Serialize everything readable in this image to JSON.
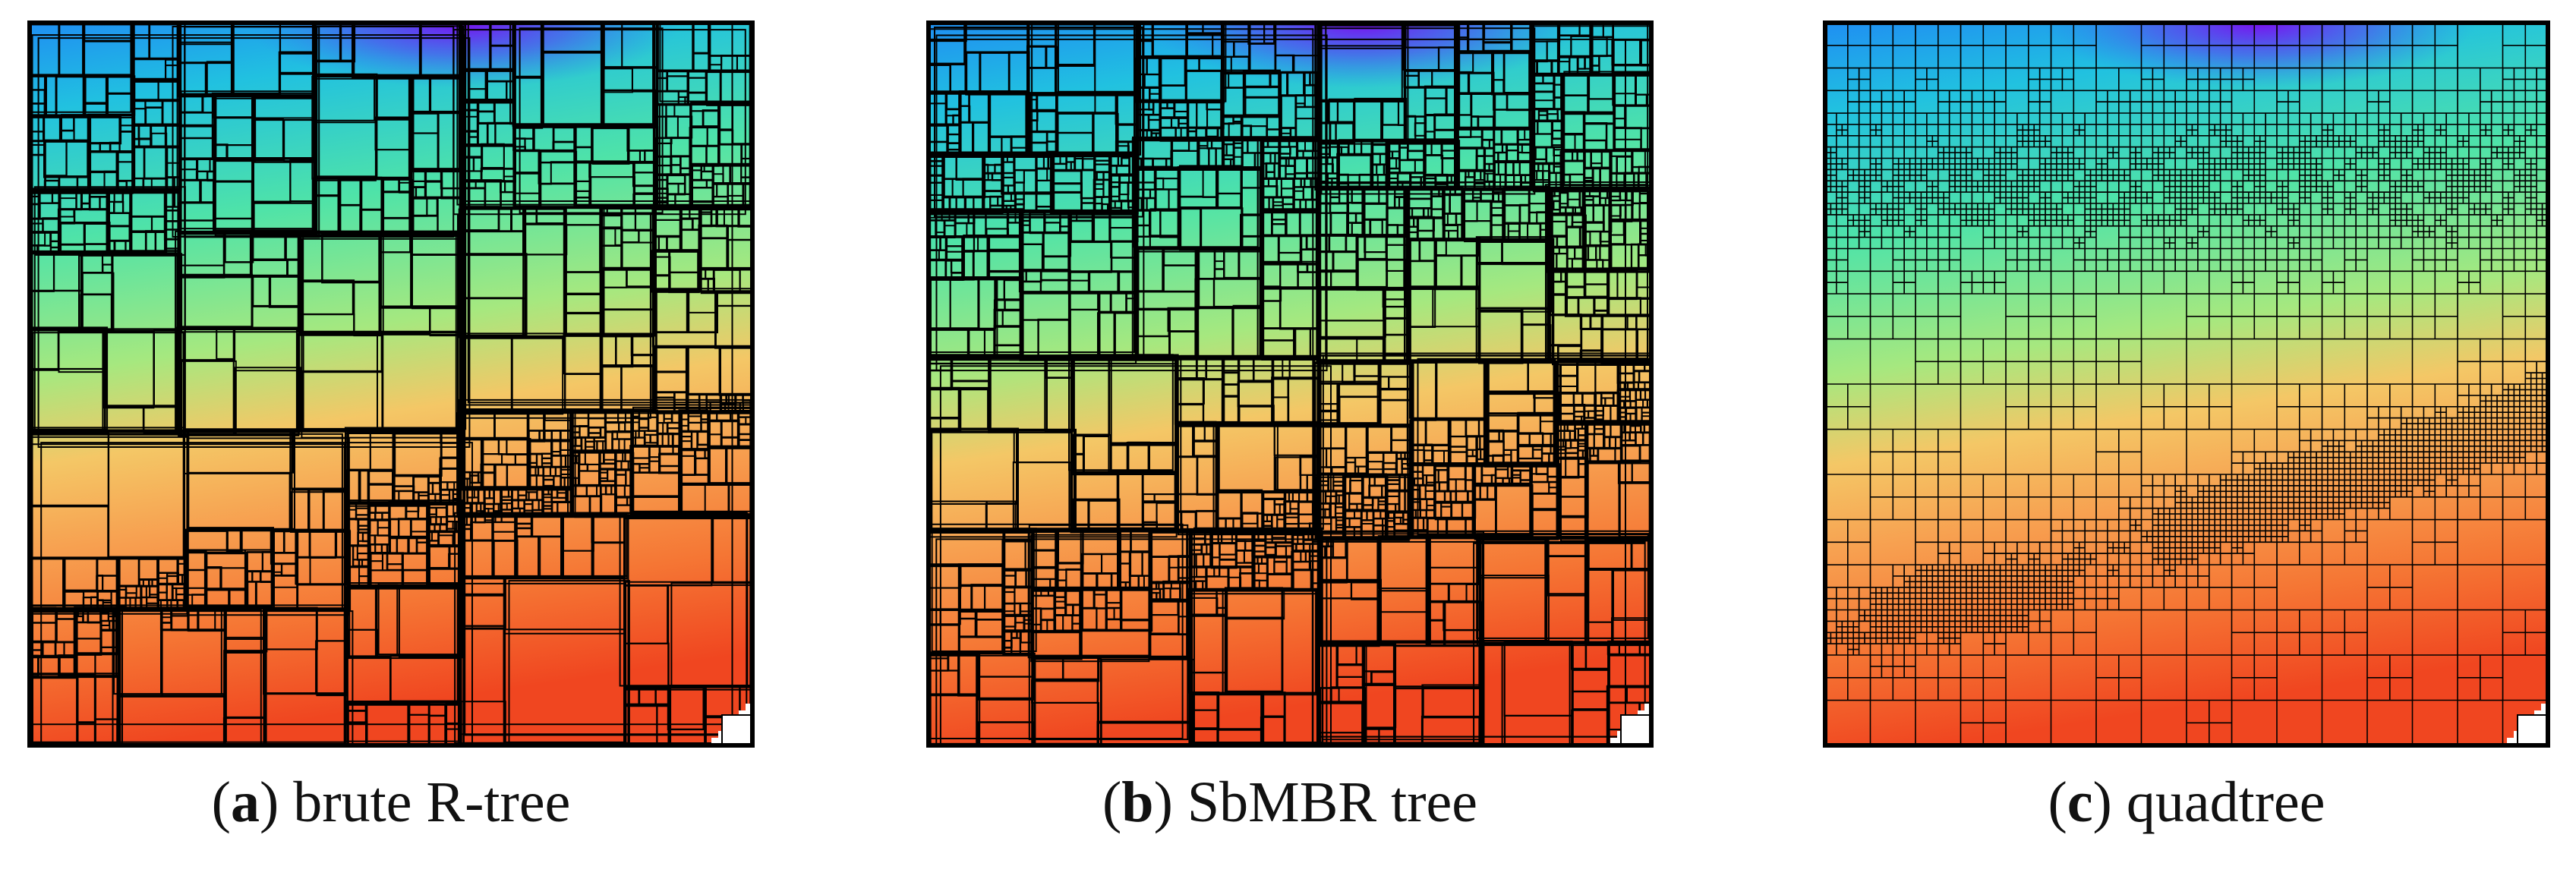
{
  "panels": [
    {
      "caption_parts": [
        "(",
        "a",
        ") brute R-tree"
      ]
    },
    {
      "caption_parts": [
        "(",
        "b",
        ") SbMBR tree"
      ]
    },
    {
      "caption_parts": [
        "(",
        "c",
        ") quadtree"
      ]
    }
  ]
}
